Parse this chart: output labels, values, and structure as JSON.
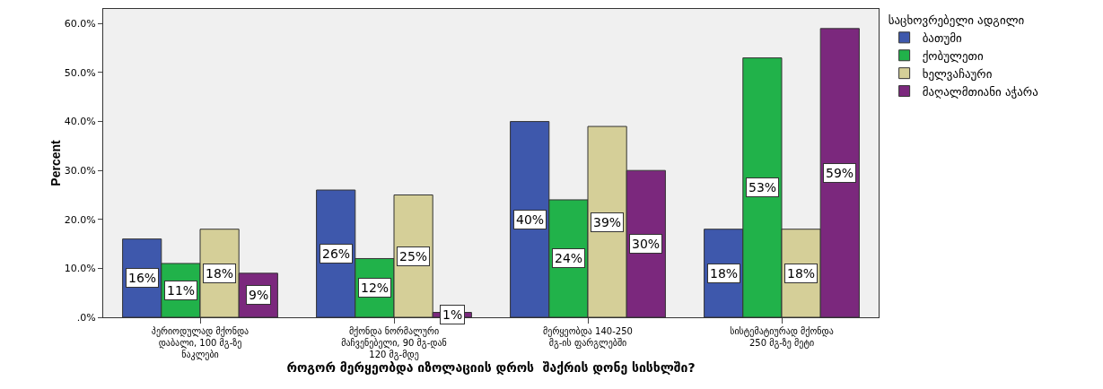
{
  "chart_data": {
    "type": "bar",
    "xlabel": "როგორ მერყეობდა იზოლაციის დროს  შაქრის დონე სისხლში?",
    "ylabel": "Percent",
    "legend_title": "საცხოვრებელი ადგილი",
    "categories": [
      "პერიოდულად მქონდა დაბალი, 100 მგ-ზე ნაკლები",
      "მქონდა ნორმალური მაჩვენებელი, 90 მგ-დან 120 მგ-მდე",
      "მერყეობდა 140-250 მგ-ის ფარგლებში",
      "სისტემატიურად მქონდა 250 მგ-ზე მეტი"
    ],
    "series": [
      {
        "name": "ბათუმი",
        "color": "#3e58ac",
        "values": [
          16,
          26,
          40,
          18
        ],
        "value_labels": [
          "16%",
          "26%",
          "40%",
          "18%"
        ]
      },
      {
        "name": "ქობულეთი",
        "color": "#21b24a",
        "values": [
          11,
          12,
          24,
          53
        ],
        "value_labels": [
          "11%",
          "12%",
          "24%",
          "53%"
        ]
      },
      {
        "name": "ხელვაჩაური",
        "color": "#d5cf98",
        "values": [
          18,
          25,
          39,
          18
        ],
        "value_labels": [
          "18%",
          "25%",
          "39%",
          "18%"
        ]
      },
      {
        "name": "მაღალმთიანი აჭარა",
        "color": "#7b287d",
        "values": [
          9,
          1,
          30,
          59
        ],
        "value_labels": [
          "9%",
          "1%",
          "30%",
          "59%"
        ]
      }
    ],
    "ylim": [
      0,
      63
    ],
    "yticks": [
      {
        "value": 0,
        "label": ".0%"
      },
      {
        "value": 10,
        "label": "10.0%"
      },
      {
        "value": 20,
        "label": "20.0%"
      },
      {
        "value": 30,
        "label": "30.0%"
      },
      {
        "value": 40,
        "label": "40.0%"
      },
      {
        "value": 50,
        "label": "50.0%"
      },
      {
        "value": 60,
        "label": "60.0%"
      }
    ],
    "grid": false,
    "legend": "top right"
  }
}
